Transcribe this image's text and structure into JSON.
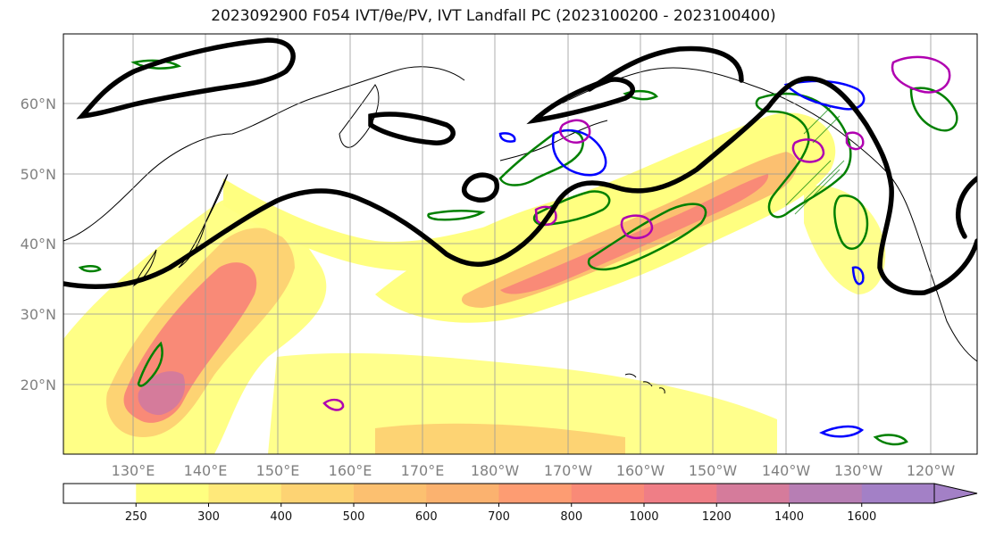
{
  "title": "2023092900 F054 IVT/θe/PV, IVT Landfall PC (2023100200 - 2023100400)",
  "map": {
    "projection": "Plate Carree",
    "extent": {
      "lon_min": 120,
      "lon_max": 250,
      "lat_min": 10,
      "lat_max": 70
    },
    "lat_labels": [
      "60°N",
      "50°N",
      "40°N",
      "30°N",
      "20°N"
    ],
    "lon_labels": [
      "130°E",
      "140°E",
      "150°E",
      "160°E",
      "170°E",
      "180°W",
      "170°W",
      "160°W",
      "150°W",
      "140°W",
      "130°W",
      "120°W"
    ],
    "gridlines": true,
    "layers": {
      "ivt_fill": "filled contours, yellow to purple",
      "theta_e": {
        "color": "#008000",
        "description": "green contours"
      },
      "pv": {
        "color": "#0000ff",
        "description": "blue contours"
      },
      "landfall_pc": {
        "color": "#b000b0",
        "description": "magenta contours"
      },
      "height_contour": {
        "color": "#000000",
        "description": "thick black contours"
      }
    }
  },
  "colorbar": {
    "ticks": [
      "250",
      "300",
      "400",
      "500",
      "600",
      "700",
      "800",
      "1000",
      "1200",
      "1400",
      "1600"
    ],
    "colors": [
      "#ffffff",
      "#ffff80",
      "#ffe97a",
      "#fdd373",
      "#fcc070",
      "#fbb26f",
      "#fd9c72",
      "#f98a77",
      "#ef7e86",
      "#d57b9b",
      "#b77eb4",
      "#a380c6"
    ],
    "extend": "max"
  }
}
